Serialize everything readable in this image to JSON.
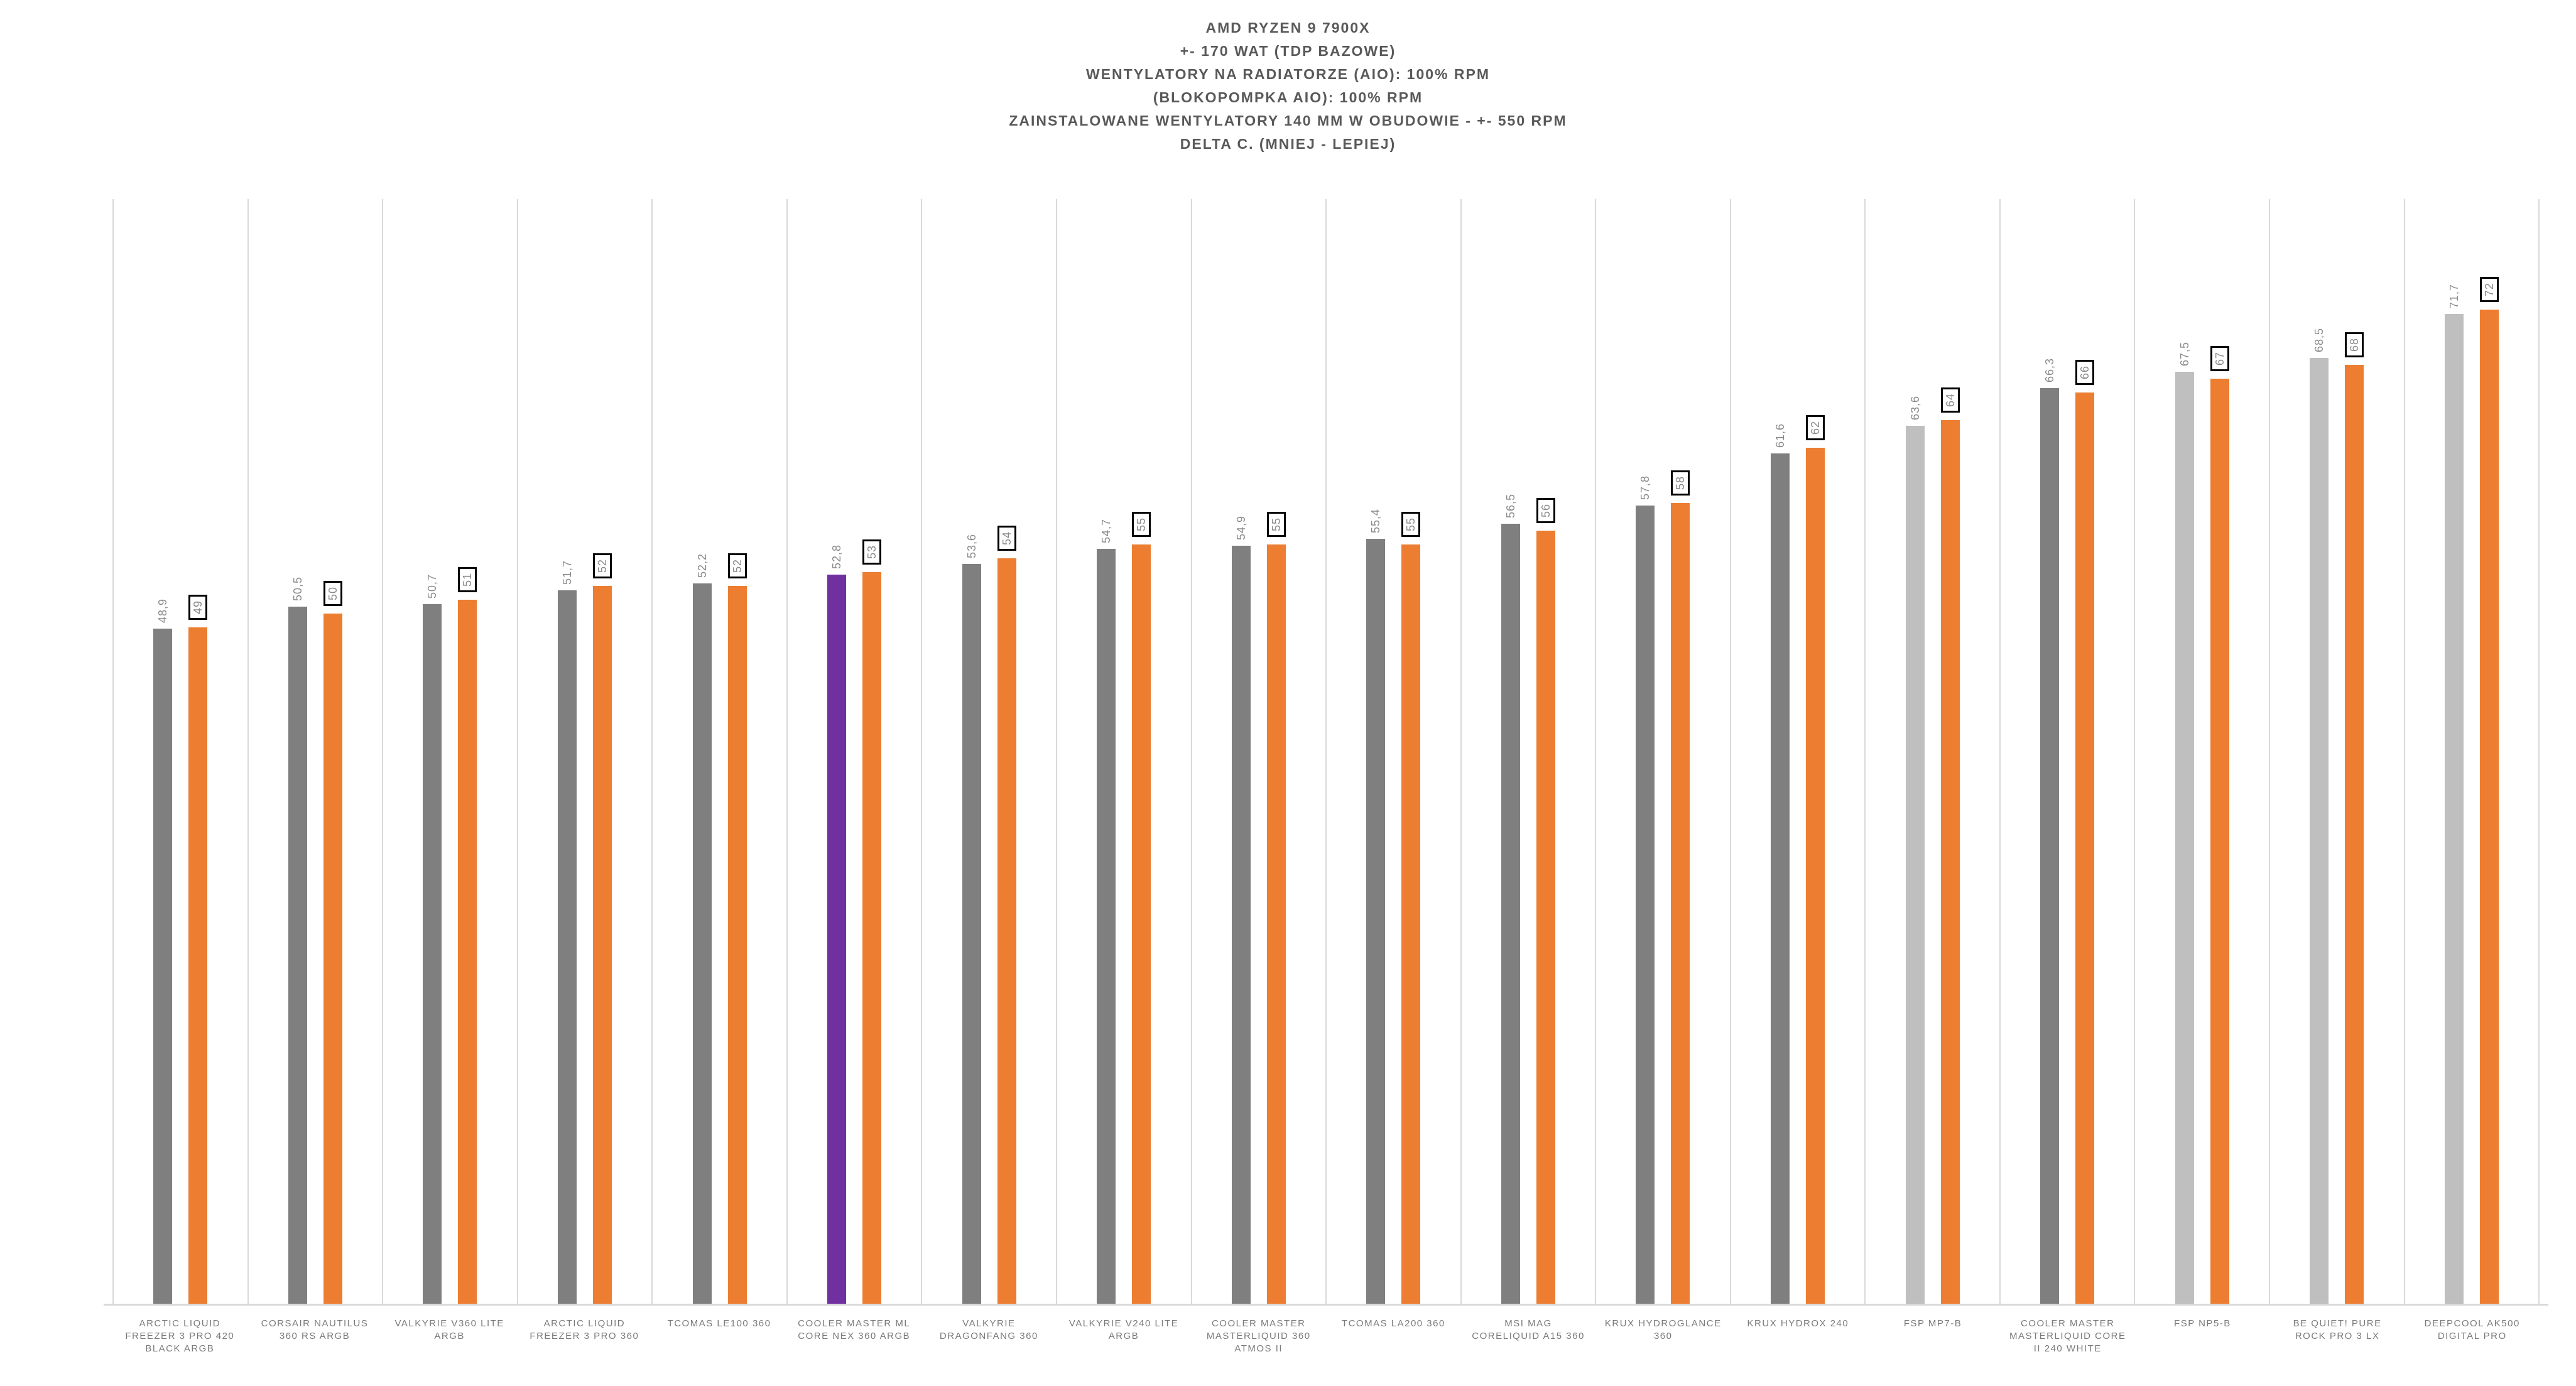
{
  "chart_data": {
    "type": "bar",
    "title_lines": [
      "AMD RYZEN 9 7900X",
      "+- 170 WAT (TDP BAZOWE)",
      "WENTYLATORY NA RADIATORZE (AIO): 100% RPM",
      "(BLOKOPOMPKA AIO): 100% RPM",
      "ZAINSTALOWANE WENTYLATORY 140 MM W OBUDOWIE - +- 550 RPM",
      "DELTA C. (MNIEJ - LEPIEJ)"
    ],
    "ylabel": "",
    "xlabel": "",
    "ylim": [
      0,
      80
    ],
    "grid": "vertical-category-separators",
    "legend": "none",
    "colors": {
      "default": "#7F7F7F",
      "light": "#BFBFBF",
      "highlight": "#7030A0",
      "secondary": "#ED7D31",
      "gridline": "#D9D9D9",
      "title_text": "#595959",
      "value_text": "#8a8a8a",
      "category_text": "#7a7a7a",
      "box_border": "#000000"
    },
    "series_note": "each category: gray bar = measured delta C with one decimal, orange bar = rounded value shown in black-framed box",
    "categories": [
      {
        "label": "ARCTIC LIQUID FREEZER 3 PRO 420 BLACK ARGB",
        "value": 48.9,
        "value_label": "48,9",
        "secondary_value": 49,
        "secondary_label": "49",
        "bar_style": "default"
      },
      {
        "label": "CORSAIR NAUTILUS 360 RS ARGB",
        "value": 50.5,
        "value_label": "50,5",
        "secondary_value": 50,
        "secondary_label": "50",
        "bar_style": "default"
      },
      {
        "label": "VALKYRIE V360 LITE ARGB",
        "value": 50.7,
        "value_label": "50,7",
        "secondary_value": 51,
        "secondary_label": "51",
        "bar_style": "default"
      },
      {
        "label": "ARCTIC LIQUID FREEZER 3 PRO 360",
        "value": 51.7,
        "value_label": "51,7",
        "secondary_value": 52,
        "secondary_label": "52",
        "bar_style": "default"
      },
      {
        "label": "TCOMAS LE100 360",
        "value": 52.2,
        "value_label": "52,2",
        "secondary_value": 52,
        "secondary_label": "52",
        "bar_style": "default"
      },
      {
        "label": "COOLER MASTER ML CORE NEX 360 ARGB",
        "value": 52.8,
        "value_label": "52,8",
        "secondary_value": 53,
        "secondary_label": "53",
        "bar_style": "highlight"
      },
      {
        "label": "VALKYRIE DRAGONFANG 360",
        "value": 53.6,
        "value_label": "53,6",
        "secondary_value": 54,
        "secondary_label": "54",
        "bar_style": "default"
      },
      {
        "label": "VALKYRIE V240 LITE ARGB",
        "value": 54.7,
        "value_label": "54,7",
        "secondary_value": 55,
        "secondary_label": "55",
        "bar_style": "default"
      },
      {
        "label": "COOLER MASTER MASTERLIQUID 360 ATMOS II",
        "value": 54.9,
        "value_label": "54,9",
        "secondary_value": 55,
        "secondary_label": "55",
        "bar_style": "default"
      },
      {
        "label": "TCOMAS LA200 360",
        "value": 55.4,
        "value_label": "55,4",
        "secondary_value": 55,
        "secondary_label": "55",
        "bar_style": "default"
      },
      {
        "label": "MSI MAG CORELIQUID A15 360",
        "value": 56.5,
        "value_label": "56,5",
        "secondary_value": 56,
        "secondary_label": "56",
        "bar_style": "default"
      },
      {
        "label": "KRUX HYDROGLANCE 360",
        "value": 57.8,
        "value_label": "57,8",
        "secondary_value": 58,
        "secondary_label": "58",
        "bar_style": "default"
      },
      {
        "label": "KRUX HYDROX 240",
        "value": 61.6,
        "value_label": "61,6",
        "secondary_value": 62,
        "secondary_label": "62",
        "bar_style": "default"
      },
      {
        "label": "FSP MP7-B",
        "value": 63.6,
        "value_label": "63,6",
        "secondary_value": 64,
        "secondary_label": "64",
        "bar_style": "light"
      },
      {
        "label": "COOLER MASTER MASTERLIQUID CORE II 240 WHITE",
        "value": 66.3,
        "value_label": "66,3",
        "secondary_value": 66,
        "secondary_label": "66",
        "bar_style": "default"
      },
      {
        "label": "FSP NP5-B",
        "value": 67.5,
        "value_label": "67,5",
        "secondary_value": 67,
        "secondary_label": "67",
        "bar_style": "light"
      },
      {
        "label": "BE QUIET! PURE ROCK PRO 3 LX",
        "value": 68.5,
        "value_label": "68,5",
        "secondary_value": 68,
        "secondary_label": "68",
        "bar_style": "light"
      },
      {
        "label": "DEEPCOOL AK500 DIGITAL PRO",
        "value": 71.7,
        "value_label": "71,7",
        "secondary_value": 72,
        "secondary_label": "72",
        "bar_style": "light"
      }
    ]
  }
}
